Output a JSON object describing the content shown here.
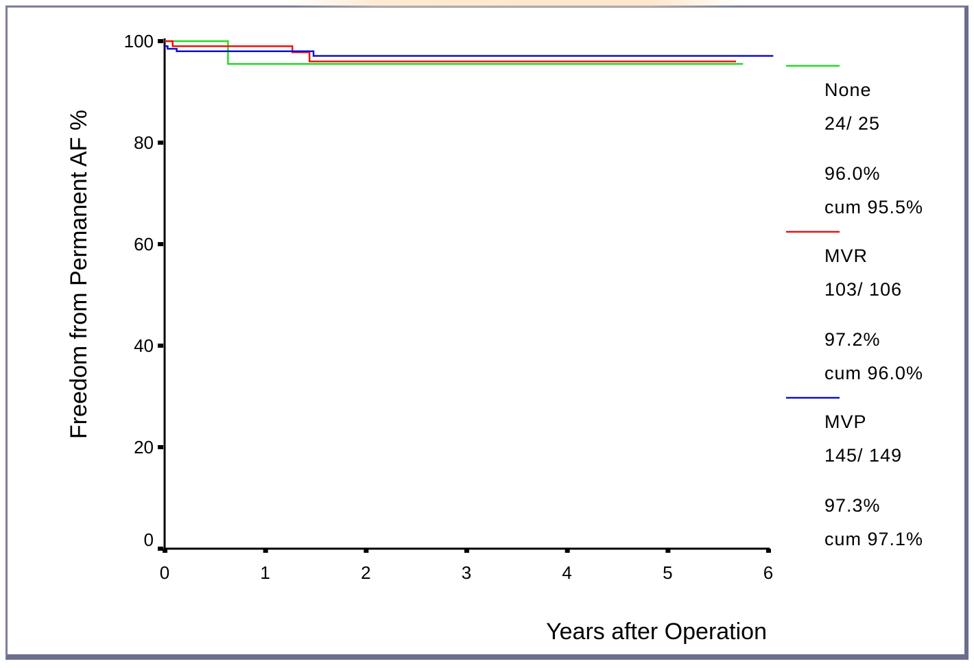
{
  "chart_data": {
    "type": "line",
    "xlabel": "Years after Operation",
    "ylabel": "Freedom from Permanent AF %",
    "xlim": [
      0,
      6
    ],
    "ylim": [
      0,
      100
    ],
    "x_ticks": [
      "0",
      "1",
      "2",
      "3",
      "4",
      "5",
      "6"
    ],
    "y_ticks": [
      "0",
      "20",
      "40",
      "60",
      "80",
      "100"
    ],
    "grid": false,
    "legend_position": "right",
    "series": [
      {
        "name": "None",
        "color": "#22dd22",
        "step": true,
        "x": [
          0,
          0.63,
          5.75
        ],
        "y": [
          100,
          95.5,
          95.5
        ],
        "legend_lines": [
          "None",
          "24/ 25",
          "96.0%",
          "cum  95.5%"
        ]
      },
      {
        "name": "MVR",
        "color": "#ee1111",
        "step": true,
        "x": [
          0,
          0.08,
          1.27,
          1.44,
          5.68
        ],
        "y": [
          100,
          99,
          97.8,
          96.0,
          96.0
        ],
        "legend_lines": [
          "MVR",
          "103/ 106",
          "97.2%",
          "cum  96.0%"
        ]
      },
      {
        "name": "MVP",
        "color": "#1111cc",
        "step": true,
        "x": [
          0,
          0.03,
          0.12,
          1.48,
          6.05
        ],
        "y": [
          99,
          98.5,
          98,
          97.1,
          97.1
        ],
        "legend_lines": [
          "MVP",
          "145/ 149",
          "97.3%",
          "cum  97.1%"
        ]
      }
    ]
  }
}
